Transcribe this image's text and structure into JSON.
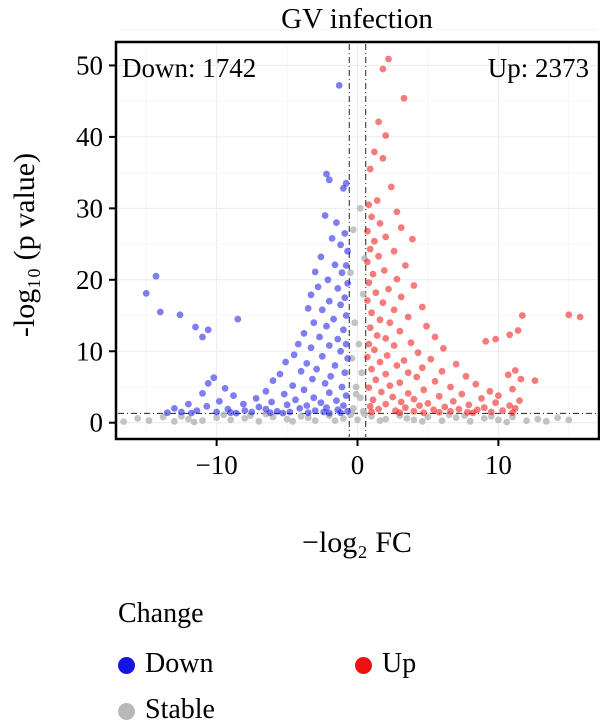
{
  "chart_data": {
    "type": "scatter",
    "title": "GV infection",
    "xlabel": "−log₂ FC",
    "ylabel": "-log₁₀ (p value)",
    "xlim": [
      -17,
      17
    ],
    "ylim": [
      -2,
      53
    ],
    "x_ticks": [
      "−10",
      "0",
      "10"
    ],
    "x_tick_values": [
      -10,
      0,
      10
    ],
    "y_ticks": [
      "0",
      "10",
      "20",
      "30",
      "40",
      "50"
    ],
    "y_tick_values": [
      0,
      10,
      20,
      30,
      40,
      50
    ],
    "grid": true,
    "thresholds": {
      "log2fc": [
        -0.585,
        0.585
      ],
      "neg_log10_p": 1.3
    },
    "annotations": {
      "down": "Down: 1742",
      "up": "Up: 2373"
    },
    "legend": {
      "title": "Change",
      "placement": "bottom",
      "items": [
        {
          "label": "Down",
          "color": "#1414e6"
        },
        {
          "label": "Up",
          "color": "#ee1111"
        },
        {
          "label": "Stable",
          "color": "#b8b8b8"
        }
      ]
    },
    "series": [
      {
        "name": "Down",
        "color": "#1414e6",
        "points": [
          [
            -1.3,
            47.2
          ],
          [
            -2.2,
            34.8
          ],
          [
            -2.0,
            34.0
          ],
          [
            -0.8,
            33.5
          ],
          [
            -1.0,
            32.8
          ],
          [
            -2.3,
            29.0
          ],
          [
            -1.5,
            28.0
          ],
          [
            -0.9,
            26.5
          ],
          [
            -1.8,
            25.8
          ],
          [
            -1.2,
            24.9
          ],
          [
            -0.7,
            24.0
          ],
          [
            -2.6,
            23.2
          ],
          [
            -1.6,
            22.1
          ],
          [
            -0.8,
            22.0
          ],
          [
            -3.0,
            21.1
          ],
          [
            -1.1,
            21.0
          ],
          [
            -14.3,
            20.5
          ],
          [
            -2.1,
            20.0
          ],
          [
            -0.7,
            19.5
          ],
          [
            -2.8,
            19.0
          ],
          [
            -1.4,
            18.8
          ],
          [
            -15.0,
            18.1
          ],
          [
            -3.3,
            17.9
          ],
          [
            -0.9,
            17.5
          ],
          [
            -2.0,
            17.0
          ],
          [
            -1.2,
            16.5
          ],
          [
            -14.0,
            15.5
          ],
          [
            -3.5,
            16.0
          ],
          [
            -2.5,
            15.8
          ],
          [
            -12.6,
            15.1
          ],
          [
            -0.8,
            15.0
          ],
          [
            -8.5,
            14.5
          ],
          [
            -1.7,
            14.5
          ],
          [
            -3.1,
            14.0
          ],
          [
            -2.2,
            13.5
          ],
          [
            -11.5,
            13.4
          ],
          [
            -10.6,
            13.0
          ],
          [
            -1.0,
            13.0
          ],
          [
            -3.8,
            12.5
          ],
          [
            -11.0,
            12.0
          ],
          [
            -2.7,
            12.0
          ],
          [
            -1.4,
            11.7
          ],
          [
            -4.2,
            11.0
          ],
          [
            -0.8,
            11.0
          ],
          [
            -2.0,
            10.8
          ],
          [
            -3.3,
            10.5
          ],
          [
            -1.2,
            10.0
          ],
          [
            -4.5,
            9.5
          ],
          [
            -2.5,
            9.3
          ],
          [
            -0.7,
            9.0
          ],
          [
            -5.1,
            8.5
          ],
          [
            -3.6,
            8.3
          ],
          [
            -1.6,
            8.0
          ],
          [
            -2.9,
            7.5
          ],
          [
            -4.0,
            7.2
          ],
          [
            -0.9,
            7.0
          ],
          [
            -5.5,
            6.8
          ],
          [
            -1.9,
            6.5
          ],
          [
            -10.2,
            6.3
          ],
          [
            -3.2,
            6.1
          ],
          [
            -6.0,
            5.9
          ],
          [
            -10.6,
            5.5
          ],
          [
            -2.3,
            5.5
          ],
          [
            -4.6,
            5.2
          ],
          [
            -1.1,
            5.0
          ],
          [
            -9.4,
            4.8
          ],
          [
            -3.8,
            4.6
          ],
          [
            -6.5,
            4.4
          ],
          [
            -2.0,
            4.2
          ],
          [
            -11.0,
            4.1
          ],
          [
            -5.2,
            4.0
          ],
          [
            -8.8,
            3.8
          ],
          [
            -0.8,
            3.8
          ],
          [
            -3.1,
            3.5
          ],
          [
            -7.2,
            3.4
          ],
          [
            -4.4,
            3.2
          ],
          [
            -1.5,
            3.1
          ],
          [
            -9.8,
            3.0
          ],
          [
            -6.1,
            2.9
          ],
          [
            -2.6,
            2.8
          ],
          [
            -12.0,
            2.6
          ],
          [
            -8.1,
            2.6
          ],
          [
            -5.0,
            2.5
          ],
          [
            -3.6,
            2.4
          ],
          [
            -1.0,
            2.4
          ],
          [
            -10.7,
            2.3
          ],
          [
            -7.0,
            2.2
          ],
          [
            -2.2,
            2.1
          ],
          [
            -13.0,
            2.0
          ],
          [
            -4.1,
            2.0
          ],
          [
            -9.2,
            1.9
          ],
          [
            -6.5,
            1.9
          ],
          [
            -1.4,
            1.8
          ],
          [
            -11.4,
            1.7
          ],
          [
            -8.0,
            1.7
          ],
          [
            -3.0,
            1.7
          ],
          [
            -5.7,
            1.6
          ],
          [
            -0.7,
            1.6
          ],
          [
            -12.5,
            1.5
          ],
          [
            -10.0,
            1.5
          ],
          [
            -7.5,
            1.5
          ],
          [
            -4.8,
            1.5
          ],
          [
            -2.4,
            1.5
          ],
          [
            -13.5,
            1.4
          ],
          [
            -9.0,
            1.4
          ],
          [
            -6.2,
            1.4
          ],
          [
            -3.5,
            1.4
          ],
          [
            -1.2,
            1.4
          ],
          [
            -11.8,
            1.35
          ],
          [
            -8.6,
            1.35
          ],
          [
            -5.3,
            1.35
          ],
          [
            -2.0,
            1.35
          ]
        ]
      },
      {
        "name": "Up",
        "color": "#ee1111",
        "points": [
          [
            2.2,
            50.9
          ],
          [
            1.8,
            49.5
          ],
          [
            3.3,
            45.4
          ],
          [
            1.5,
            42.1
          ],
          [
            2.0,
            40.2
          ],
          [
            1.2,
            37.9
          ],
          [
            1.8,
            37.0
          ],
          [
            0.9,
            35.5
          ],
          [
            2.4,
            33.0
          ],
          [
            1.4,
            31.1
          ],
          [
            0.8,
            30.5
          ],
          [
            2.8,
            29.5
          ],
          [
            1.0,
            28.8
          ],
          [
            1.6,
            27.9
          ],
          [
            3.1,
            27.3
          ],
          [
            0.7,
            26.8
          ],
          [
            2.0,
            26.0
          ],
          [
            3.9,
            25.7
          ],
          [
            1.2,
            25.4
          ],
          [
            0.9,
            24.3
          ],
          [
            2.6,
            24.0
          ],
          [
            1.5,
            23.3
          ],
          [
            0.7,
            22.5
          ],
          [
            3.4,
            22.0
          ],
          [
            1.9,
            21.3
          ],
          [
            1.1,
            20.8
          ],
          [
            2.8,
            20.1
          ],
          [
            0.8,
            19.6
          ],
          [
            4.0,
            19.2
          ],
          [
            2.2,
            18.7
          ],
          [
            1.3,
            18.2
          ],
          [
            3.1,
            17.6
          ],
          [
            0.7,
            17.1
          ],
          [
            1.8,
            16.8
          ],
          [
            4.6,
            16.2
          ],
          [
            2.6,
            15.8
          ],
          [
            1.0,
            15.4
          ],
          [
            15.0,
            15.1
          ],
          [
            11.7,
            15.0
          ],
          [
            3.6,
            14.8
          ],
          [
            15.8,
            14.8
          ],
          [
            1.6,
            14.4
          ],
          [
            2.3,
            14.0
          ],
          [
            4.9,
            13.5
          ],
          [
            0.9,
            13.3
          ],
          [
            11.4,
            12.9
          ],
          [
            3.0,
            12.8
          ],
          [
            10.8,
            12.3
          ],
          [
            1.4,
            12.2
          ],
          [
            5.5,
            12.0
          ],
          [
            2.0,
            11.8
          ],
          [
            9.8,
            11.7
          ],
          [
            9.1,
            11.4
          ],
          [
            3.8,
            11.2
          ],
          [
            0.8,
            11.0
          ],
          [
            2.6,
            10.8
          ],
          [
            6.1,
            10.4
          ],
          [
            1.2,
            10.2
          ],
          [
            4.3,
            9.8
          ],
          [
            2.1,
            9.4
          ],
          [
            0.7,
            9.2
          ],
          [
            5.2,
            8.9
          ],
          [
            3.3,
            8.7
          ],
          [
            1.6,
            8.5
          ],
          [
            7.0,
            8.2
          ],
          [
            2.8,
            8.0
          ],
          [
            4.6,
            7.7
          ],
          [
            1.0,
            7.5
          ],
          [
            11.2,
            7.3
          ],
          [
            6.0,
            7.2
          ],
          [
            3.6,
            7.0
          ],
          [
            2.0,
            6.8
          ],
          [
            10.7,
            6.7
          ],
          [
            7.7,
            6.5
          ],
          [
            4.2,
            6.4
          ],
          [
            11.6,
            6.1
          ],
          [
            1.3,
            6.0
          ],
          [
            5.5,
            5.8
          ],
          [
            12.6,
            5.9
          ],
          [
            3.0,
            5.6
          ],
          [
            8.4,
            5.4
          ],
          [
            2.3,
            5.2
          ],
          [
            6.6,
            5.0
          ],
          [
            0.8,
            4.9
          ],
          [
            11.0,
            4.7
          ],
          [
            4.7,
            4.6
          ],
          [
            9.4,
            4.4
          ],
          [
            1.7,
            4.3
          ],
          [
            3.6,
            4.1
          ],
          [
            7.4,
            4.0
          ],
          [
            10.0,
            3.8
          ],
          [
            5.8,
            3.7
          ],
          [
            2.5,
            3.6
          ],
          [
            8.8,
            3.4
          ],
          [
            4.0,
            3.3
          ],
          [
            1.1,
            3.2
          ],
          [
            11.5,
            3.1
          ],
          [
            6.8,
            3.0
          ],
          [
            3.1,
            2.9
          ],
          [
            9.8,
            2.8
          ],
          [
            5.0,
            2.7
          ],
          [
            2.0,
            2.6
          ],
          [
            7.9,
            2.5
          ],
          [
            10.8,
            2.4
          ],
          [
            4.4,
            2.4
          ],
          [
            0.9,
            2.3
          ],
          [
            6.2,
            2.2
          ],
          [
            9.0,
            2.1
          ],
          [
            3.4,
            2.1
          ],
          [
            11.2,
            2.0
          ],
          [
            7.2,
            1.9
          ],
          [
            1.5,
            1.9
          ],
          [
            5.4,
            1.8
          ],
          [
            8.5,
            1.8
          ],
          [
            2.7,
            1.7
          ],
          [
            10.3,
            1.7
          ],
          [
            6.6,
            1.6
          ],
          [
            4.0,
            1.6
          ],
          [
            1.0,
            1.5
          ],
          [
            9.5,
            1.5
          ],
          [
            7.8,
            1.45
          ],
          [
            5.8,
            1.45
          ],
          [
            3.0,
            1.4
          ],
          [
            11.0,
            1.4
          ],
          [
            8.2,
            1.38
          ],
          [
            4.7,
            1.38
          ]
        ]
      },
      {
        "name": "Stable",
        "color": "#b8b8b8",
        "points": [
          [
            -16.6,
            0.15
          ],
          [
            -14.8,
            0.3
          ],
          [
            -13.0,
            0.2
          ],
          [
            -12.0,
            0.5
          ],
          [
            -11.0,
            0.3
          ],
          [
            -10.0,
            0.7
          ],
          [
            -9.0,
            0.4
          ],
          [
            -8.0,
            0.6
          ],
          [
            -7.0,
            0.2
          ],
          [
            -6.0,
            0.8
          ],
          [
            -5.0,
            0.5
          ],
          [
            -4.0,
            0.9
          ],
          [
            -3.0,
            0.3
          ],
          [
            -2.0,
            1.0
          ],
          [
            -1.0,
            0.6
          ],
          [
            0.0,
            0.4
          ],
          [
            1.0,
            0.9
          ],
          [
            2.0,
            0.5
          ],
          [
            3.0,
            1.0
          ],
          [
            4.0,
            0.4
          ],
          [
            5.0,
            0.8
          ],
          [
            6.0,
            0.3
          ],
          [
            7.0,
            0.7
          ],
          [
            8.0,
            0.2
          ],
          [
            9.0,
            0.6
          ],
          [
            10.0,
            0.4
          ],
          [
            11.0,
            0.8
          ],
          [
            12.0,
            0.3
          ],
          [
            12.8,
            0.5
          ],
          [
            -12.5,
            0.9
          ],
          [
            -9.5,
            1.1
          ],
          [
            -6.5,
            1.2
          ],
          [
            -3.5,
            0.7
          ],
          [
            -0.5,
            1.1
          ],
          [
            0.5,
            1.2
          ],
          [
            3.5,
            0.6
          ],
          [
            6.5,
            1.1
          ],
          [
            9.5,
            0.9
          ],
          [
            -0.3,
            2.0
          ],
          [
            0.2,
            3.5
          ],
          [
            -0.1,
            5.0
          ],
          [
            0.3,
            7.0
          ],
          [
            -0.4,
            9.0
          ],
          [
            0.1,
            11.0
          ],
          [
            -0.2,
            14.0
          ],
          [
            0.4,
            18.0
          ],
          [
            -0.5,
            21.0
          ],
          [
            0.5,
            23.0
          ],
          [
            -0.3,
            27.0
          ],
          [
            0.2,
            30.0
          ],
          [
            -0.1,
            4.0
          ],
          [
            0.4,
            1.6
          ],
          [
            -0.4,
            1.5
          ],
          [
            -15.6,
            0.6
          ],
          [
            15.0,
            0.4
          ],
          [
            14.2,
            0.7
          ],
          [
            -13.8,
            0.8
          ],
          [
            13.4,
            0.2
          ],
          [
            -11.6,
            0.1
          ],
          [
            10.6,
            0.1
          ],
          [
            -7.6,
            1.0
          ],
          [
            7.6,
            1.0
          ],
          [
            -4.6,
            0.2
          ],
          [
            4.6,
            0.2
          ],
          [
            -1.6,
            0.3
          ],
          [
            1.6,
            0.3
          ]
        ]
      }
    ]
  }
}
